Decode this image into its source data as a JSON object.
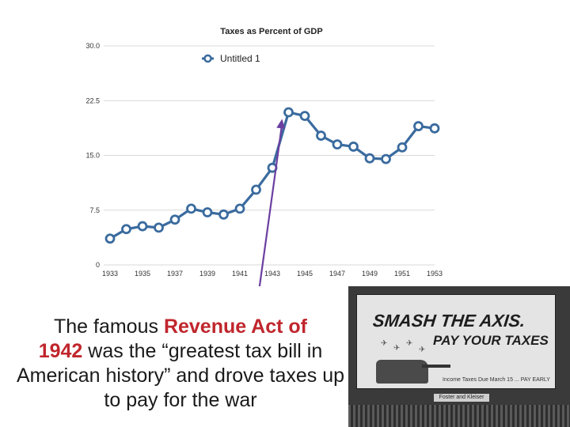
{
  "chart_data": {
    "type": "line",
    "title": "Taxes as Percent of GDP",
    "x": [
      1933,
      1934,
      1935,
      1936,
      1937,
      1938,
      1939,
      1940,
      1941,
      1942,
      1943,
      1944,
      1945,
      1946,
      1947,
      1948,
      1949,
      1950,
      1951,
      1952,
      1953
    ],
    "x_tick_labels": [
      "1933",
      "1935",
      "1937",
      "1939",
      "1941",
      "1943",
      "1945",
      "1947",
      "1949",
      "1951",
      "1953"
    ],
    "y_tick_labels": [
      "30.0",
      "22.5",
      "15.0",
      "7.5",
      "0"
    ],
    "ylim": [
      0,
      30
    ],
    "series": [
      {
        "name": "Untitled 1",
        "values": [
          3.6,
          4.9,
          5.3,
          5.1,
          6.2,
          7.7,
          7.2,
          6.9,
          7.7,
          10.3,
          13.3,
          20.9,
          20.4,
          17.7,
          16.5,
          16.2,
          14.6,
          14.5,
          16.1,
          19.0,
          18.7
        ]
      }
    ],
    "legend_position": "top-left",
    "grid": true,
    "line_color": "#3a6b9e"
  },
  "caption": {
    "part1": "The famous ",
    "highlight1": "Revenue Act of",
    "highlight2": "1942",
    "part2": " was the “greatest tax bill in American history” and drove taxes up to pay for the war"
  },
  "billboard": {
    "line1": "SMASH THE AXIS.",
    "line2": "PAY YOUR TAXES",
    "fine_print": "Income Taxes Due March 15 ... PAY EARLY",
    "plate": "Foster and Kleiser"
  },
  "arrow_color": "#6b3fa0"
}
